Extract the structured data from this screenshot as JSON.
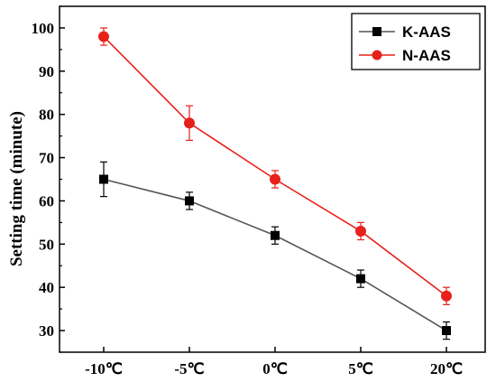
{
  "chart_data": {
    "type": "line",
    "title": "",
    "xlabel": "",
    "ylabel": "Setting time (minute)",
    "categories": [
      "-10℃",
      "-5℃",
      "0℃",
      "5℃",
      "20℃"
    ],
    "ylim": [
      25,
      105
    ],
    "yticks": [
      30,
      40,
      50,
      60,
      70,
      80,
      90,
      100
    ],
    "grid": false,
    "legend_position": "top-right",
    "series": [
      {
        "name": "K-AAS",
        "marker": "square",
        "color": "#000000",
        "line_color": "#555555",
        "values": [
          65,
          60,
          52,
          42,
          30
        ],
        "errors": [
          4,
          2,
          2,
          2,
          2
        ]
      },
      {
        "name": "N-AAS",
        "marker": "circle",
        "color": "#e8201a",
        "line_color": "#e8201a",
        "values": [
          98,
          78,
          65,
          53,
          38
        ],
        "errors": [
          2,
          4,
          2,
          2,
          2
        ]
      }
    ]
  }
}
